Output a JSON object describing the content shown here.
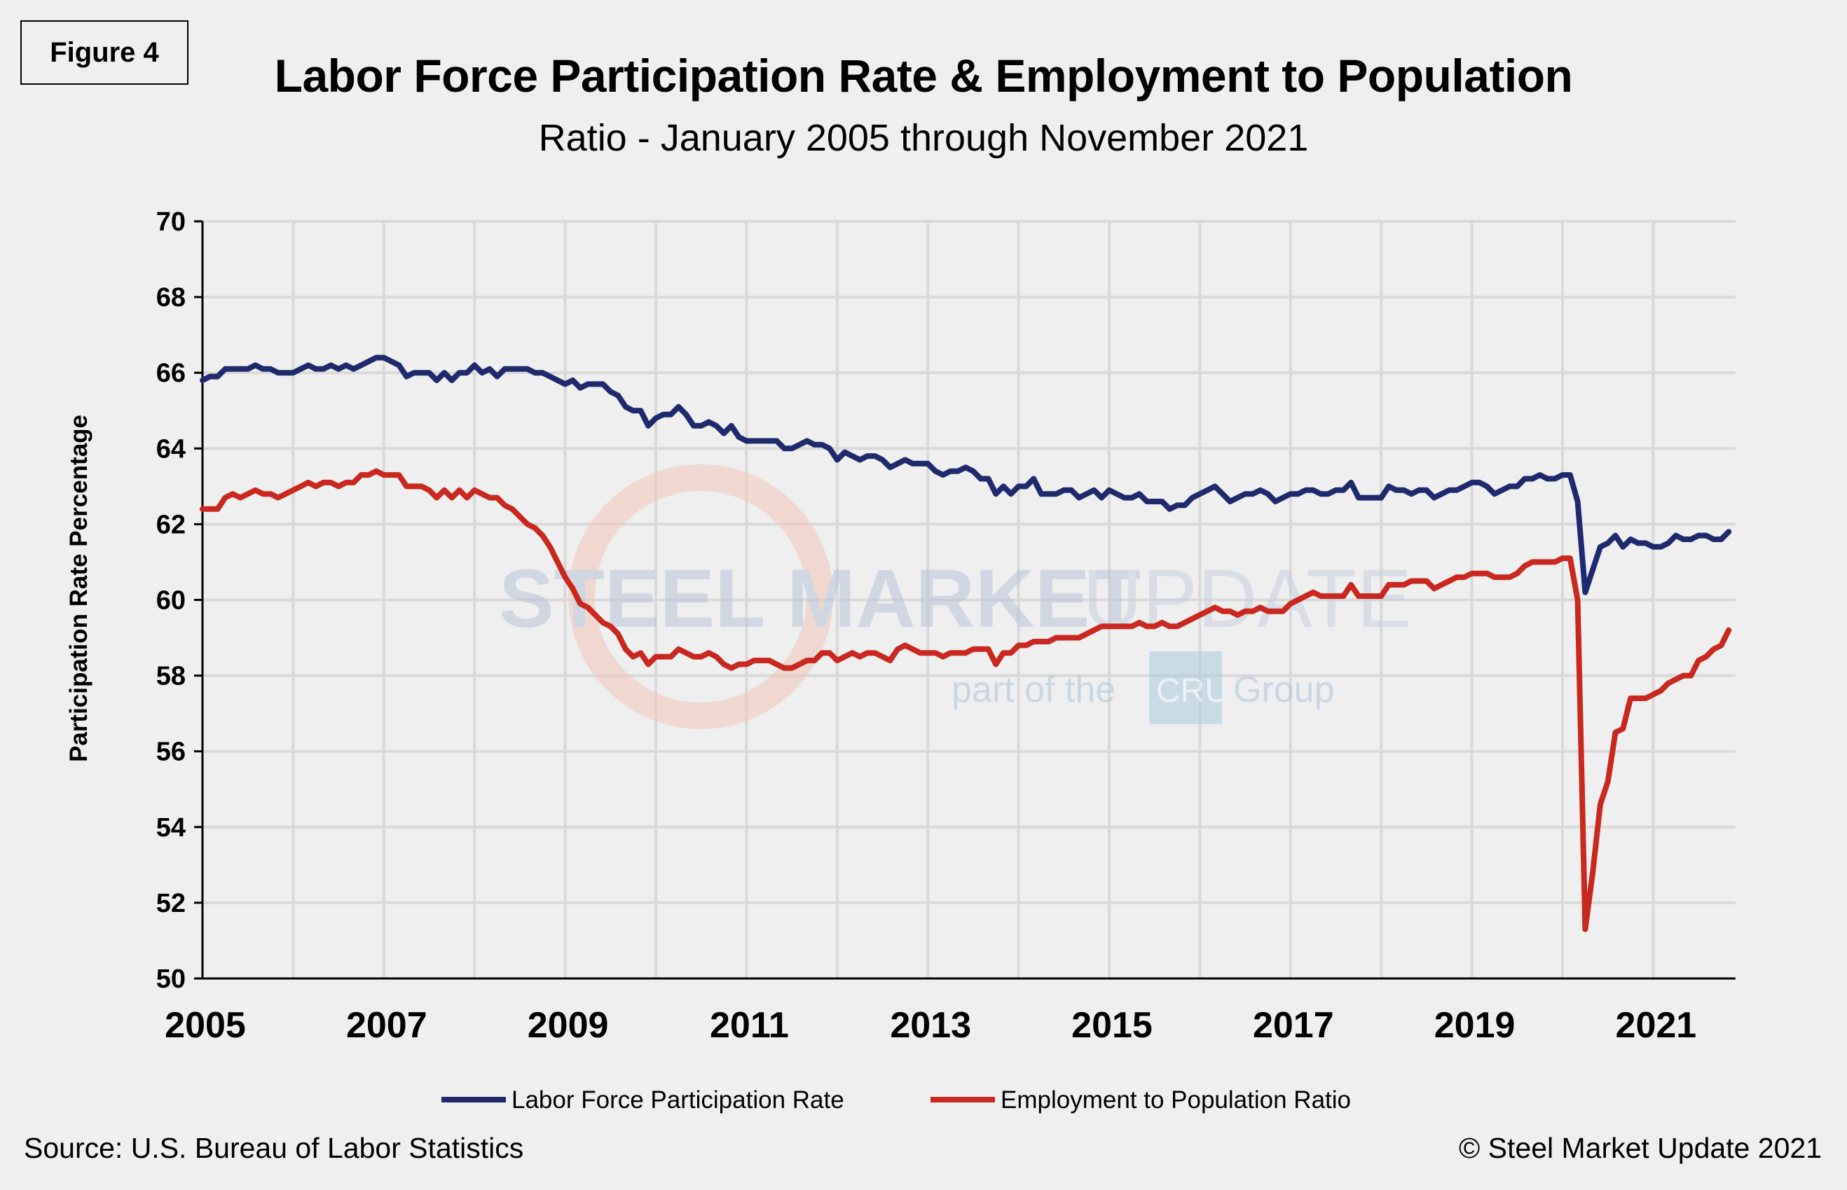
{
  "figure_label": "Figure 4",
  "source": "Source: U.S. Bureau  of Labor Statistics",
  "copyright": "© Steel Market Update 2021",
  "watermark": {
    "text_main": "STEEL MARKET",
    "text_light": "UPDATE",
    "tagline_pre": "part of the",
    "tagline_badge": "CRU",
    "tagline_post": "Group"
  },
  "chart_data": {
    "type": "line",
    "title": "Labor Force Participation Rate & Employment to Population",
    "subtitle": "Ratio - January 2005 through November 2021",
    "xlabel": "",
    "ylabel": "Participation Rate Percentage",
    "ylim": [
      50,
      70
    ],
    "yticks": [
      50,
      52,
      54,
      56,
      58,
      60,
      62,
      64,
      66,
      68,
      70
    ],
    "xticks": [
      "2005",
      "2007",
      "2009",
      "2011",
      "2013",
      "2015",
      "2017",
      "2019",
      "2021"
    ],
    "x_range": [
      "2005-01",
      "2021-11"
    ],
    "frequency": "monthly",
    "grid": true,
    "legend_position": "bottom",
    "series": [
      {
        "name": "Labor Force Participation Rate",
        "color": "#1f2a6e",
        "values_by_year": {
          "2005": [
            65.8,
            65.9,
            65.9,
            66.1,
            66.1,
            66.1,
            66.1,
            66.2,
            66.1,
            66.1,
            66.0,
            66.0
          ],
          "2006": [
            66.0,
            66.1,
            66.2,
            66.1,
            66.1,
            66.2,
            66.1,
            66.2,
            66.1,
            66.2,
            66.3,
            66.4
          ],
          "2007": [
            66.4,
            66.3,
            66.2,
            65.9,
            66.0,
            66.0,
            66.0,
            65.8,
            66.0,
            65.8,
            66.0,
            66.0
          ],
          "2008": [
            66.2,
            66.0,
            66.1,
            65.9,
            66.1,
            66.1,
            66.1,
            66.1,
            66.0,
            66.0,
            65.9,
            65.8
          ],
          "2009": [
            65.7,
            65.8,
            65.6,
            65.7,
            65.7,
            65.7,
            65.5,
            65.4,
            65.1,
            65.0,
            65.0,
            64.6
          ],
          "2010": [
            64.8,
            64.9,
            64.9,
            65.1,
            64.9,
            64.6,
            64.6,
            64.7,
            64.6,
            64.4,
            64.6,
            64.3
          ],
          "2011": [
            64.2,
            64.2,
            64.2,
            64.2,
            64.2,
            64.0,
            64.0,
            64.1,
            64.2,
            64.1,
            64.1,
            64.0
          ],
          "2012": [
            63.7,
            63.9,
            63.8,
            63.7,
            63.8,
            63.8,
            63.7,
            63.5,
            63.6,
            63.7,
            63.6,
            63.6
          ],
          "2013": [
            63.6,
            63.4,
            63.3,
            63.4,
            63.4,
            63.5,
            63.4,
            63.2,
            63.2,
            62.8,
            63.0,
            62.8
          ],
          "2014": [
            63.0,
            63.0,
            63.2,
            62.8,
            62.8,
            62.8,
            62.9,
            62.9,
            62.7,
            62.8,
            62.9,
            62.7
          ],
          "2015": [
            62.9,
            62.8,
            62.7,
            62.7,
            62.8,
            62.6,
            62.6,
            62.6,
            62.4,
            62.5,
            62.5,
            62.7
          ],
          "2016": [
            62.8,
            62.9,
            63.0,
            62.8,
            62.6,
            62.7,
            62.8,
            62.8,
            62.9,
            62.8,
            62.6,
            62.7
          ],
          "2017": [
            62.8,
            62.8,
            62.9,
            62.9,
            62.8,
            62.8,
            62.9,
            62.9,
            63.1,
            62.7,
            62.7,
            62.7
          ],
          "2018": [
            62.7,
            63.0,
            62.9,
            62.9,
            62.8,
            62.9,
            62.9,
            62.7,
            62.8,
            62.9,
            62.9,
            63.0
          ],
          "2019": [
            63.1,
            63.1,
            63.0,
            62.8,
            62.9,
            63.0,
            63.0,
            63.2,
            63.2,
            63.3,
            63.2,
            63.2
          ],
          "2020": [
            63.3,
            63.3,
            62.6,
            60.2,
            60.8,
            61.4,
            61.5,
            61.7,
            61.4,
            61.6,
            61.5,
            61.5
          ],
          "2021": [
            61.4,
            61.4,
            61.5,
            61.7,
            61.6,
            61.6,
            61.7,
            61.7,
            61.6,
            61.6,
            61.8
          ]
        }
      },
      {
        "name": "Employment to Population Ratio",
        "color": "#c8281e",
        "values_by_year": {
          "2005": [
            62.4,
            62.4,
            62.4,
            62.7,
            62.8,
            62.7,
            62.8,
            62.9,
            62.8,
            62.8,
            62.7,
            62.8
          ],
          "2006": [
            62.9,
            63.0,
            63.1,
            63.0,
            63.1,
            63.1,
            63.0,
            63.1,
            63.1,
            63.3,
            63.3,
            63.4
          ],
          "2007": [
            63.3,
            63.3,
            63.3,
            63.0,
            63.0,
            63.0,
            62.9,
            62.7,
            62.9,
            62.7,
            62.9,
            62.7
          ],
          "2008": [
            62.9,
            62.8,
            62.7,
            62.7,
            62.5,
            62.4,
            62.2,
            62.0,
            61.9,
            61.7,
            61.4,
            61.0
          ],
          "2009": [
            60.6,
            60.3,
            59.9,
            59.8,
            59.6,
            59.4,
            59.3,
            59.1,
            58.7,
            58.5,
            58.6,
            58.3
          ],
          "2010": [
            58.5,
            58.5,
            58.5,
            58.7,
            58.6,
            58.5,
            58.5,
            58.6,
            58.5,
            58.3,
            58.2,
            58.3
          ],
          "2011": [
            58.3,
            58.4,
            58.4,
            58.4,
            58.3,
            58.2,
            58.2,
            58.3,
            58.4,
            58.4,
            58.6,
            58.6
          ],
          "2012": [
            58.4,
            58.5,
            58.6,
            58.5,
            58.6,
            58.6,
            58.5,
            58.4,
            58.7,
            58.8,
            58.7,
            58.6
          ],
          "2013": [
            58.6,
            58.6,
            58.5,
            58.6,
            58.6,
            58.6,
            58.7,
            58.7,
            58.7,
            58.3,
            58.6,
            58.6
          ],
          "2014": [
            58.8,
            58.8,
            58.9,
            58.9,
            58.9,
            59.0,
            59.0,
            59.0,
            59.0,
            59.1,
            59.2,
            59.3
          ],
          "2015": [
            59.3,
            59.3,
            59.3,
            59.3,
            59.4,
            59.3,
            59.3,
            59.4,
            59.3,
            59.3,
            59.4,
            59.5
          ],
          "2016": [
            59.6,
            59.7,
            59.8,
            59.7,
            59.7,
            59.6,
            59.7,
            59.7,
            59.8,
            59.7,
            59.7,
            59.7
          ],
          "2017": [
            59.9,
            60.0,
            60.1,
            60.2,
            60.1,
            60.1,
            60.1,
            60.1,
            60.4,
            60.1,
            60.1,
            60.1
          ],
          "2018": [
            60.1,
            60.4,
            60.4,
            60.4,
            60.5,
            60.5,
            60.5,
            60.3,
            60.4,
            60.5,
            60.6,
            60.6
          ],
          "2019": [
            60.7,
            60.7,
            60.7,
            60.6,
            60.6,
            60.6,
            60.7,
            60.9,
            61.0,
            61.0,
            61.0,
            61.0
          ],
          "2020": [
            61.1,
            61.1,
            60.0,
            51.3,
            52.8,
            54.6,
            55.2,
            56.5,
            56.6,
            57.4,
            57.4,
            57.4
          ],
          "2021": [
            57.5,
            57.6,
            57.8,
            57.9,
            58.0,
            58.0,
            58.4,
            58.5,
            58.7,
            58.8,
            59.2
          ]
        }
      }
    ]
  }
}
